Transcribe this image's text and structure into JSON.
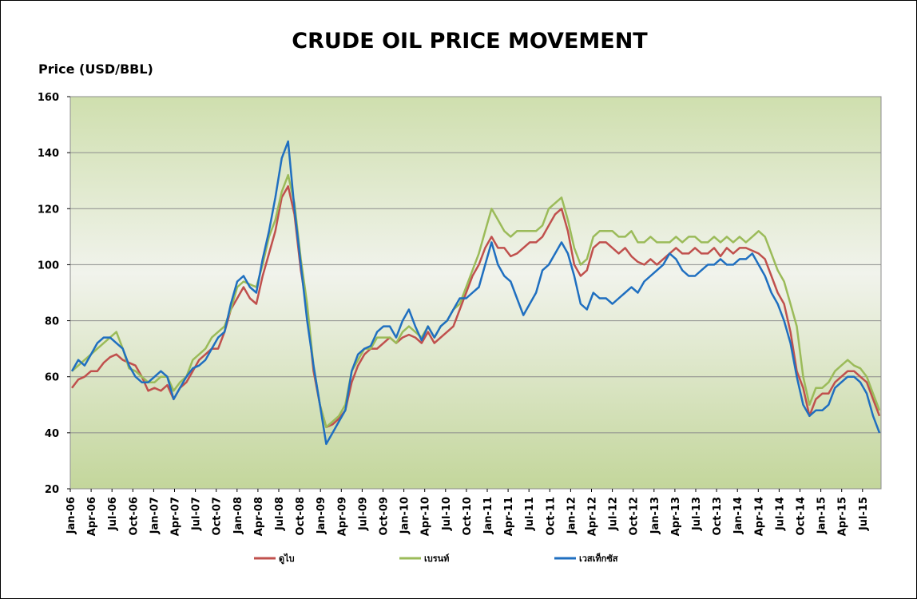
{
  "chart_data": {
    "type": "line",
    "title": "CRUDE OIL PRICE MOVEMENT",
    "ylabel": "Price (USD/BBL)",
    "xlabel": "",
    "ylim": [
      20,
      160
    ],
    "yticks": [
      20,
      40,
      60,
      80,
      100,
      120,
      140,
      160
    ],
    "x_tick_labels": [
      "Jan-06",
      "Apr-06",
      "Jul-06",
      "Oct-06",
      "Jan-07",
      "Apr-07",
      "Jul-07",
      "Oct-07",
      "Jan-08",
      "Apr-08",
      "Jul-08",
      "Oct-08",
      "Jan-09",
      "Apr-09",
      "Jul-09",
      "Oct-09",
      "Jan-10",
      "Apr-10",
      "Jul-10",
      "Oct-10",
      "Jan-11",
      "Apr-11",
      "Jul-11",
      "Oct-11",
      "Jan-12",
      "Apr-12",
      "Jul-12",
      "Oct-12",
      "Jan-13",
      "Apr-13",
      "Jul-13",
      "Oct-13",
      "Jan-14",
      "Apr-14",
      "Jul-14",
      "Oct-14",
      "Jan-15",
      "Apr-15",
      "Jul-15"
    ],
    "grid": true,
    "legend_position": "bottom",
    "series": [
      {
        "name": "ดูไบ",
        "color": "#c0504d",
        "values": [
          56,
          59,
          60,
          62,
          62,
          65,
          67,
          68,
          66,
          65,
          64,
          60,
          55,
          56,
          55,
          57,
          52,
          56,
          58,
          62,
          66,
          68,
          70,
          70,
          76,
          84,
          88,
          92,
          88,
          86,
          96,
          104,
          112,
          124,
          128,
          118,
          98,
          84,
          62,
          50,
          42,
          43,
          45,
          48,
          58,
          64,
          68,
          70,
          70,
          72,
          74,
          72,
          74,
          75,
          74,
          72,
          76,
          72,
          74,
          76,
          78,
          84,
          90,
          96,
          100,
          106,
          110,
          106,
          106,
          103,
          104,
          106,
          108,
          108,
          110,
          114,
          118,
          120,
          112,
          100,
          96,
          98,
          106,
          108,
          108,
          106,
          104,
          106,
          103,
          101,
          100,
          102,
          100,
          102,
          104,
          106,
          104,
          104,
          106,
          104,
          104,
          106,
          103,
          106,
          104,
          106,
          106,
          105,
          104,
          102,
          96,
          90,
          86,
          76,
          62,
          56,
          46,
          52,
          54,
          54,
          58,
          60,
          62,
          62,
          60,
          58,
          52,
          46
        ]
      },
      {
        "name": "เบรนท์",
        "color": "#9bbb59",
        "values": [
          62,
          64,
          66,
          68,
          70,
          72,
          74,
          76,
          70,
          63,
          62,
          60,
          58,
          58,
          60,
          60,
          55,
          58,
          60,
          66,
          68,
          70,
          74,
          76,
          78,
          84,
          92,
          94,
          93,
          92,
          100,
          110,
          116,
          126,
          132,
          122,
          102,
          86,
          64,
          50,
          42,
          44,
          46,
          50,
          62,
          66,
          70,
          70,
          74,
          74,
          74,
          72,
          76,
          78,
          76,
          74,
          78,
          74,
          78,
          80,
          84,
          86,
          92,
          98,
          104,
          112,
          120,
          116,
          112,
          110,
          112,
          112,
          112,
          112,
          114,
          120,
          122,
          124,
          116,
          106,
          100,
          102,
          110,
          112,
          112,
          112,
          110,
          110,
          112,
          108,
          108,
          110,
          108,
          108,
          108,
          110,
          108,
          110,
          110,
          108,
          108,
          110,
          108,
          110,
          108,
          110,
          108,
          110,
          112,
          110,
          104,
          98,
          94,
          86,
          78,
          60,
          50,
          56,
          56,
          58,
          62,
          64,
          66,
          64,
          63,
          60,
          54,
          48
        ]
      },
      {
        "name": "เวสเท็กซัส",
        "color": "#1f6fc0",
        "values": [
          62,
          66,
          64,
          68,
          72,
          74,
          74,
          72,
          70,
          64,
          60,
          58,
          58,
          60,
          62,
          60,
          52,
          56,
          60,
          63,
          64,
          66,
          70,
          74,
          76,
          86,
          94,
          96,
          92,
          90,
          102,
          112,
          124,
          138,
          144,
          120,
          100,
          80,
          64,
          50,
          36,
          40,
          44,
          48,
          62,
          68,
          70,
          71,
          76,
          78,
          78,
          74,
          80,
          84,
          78,
          73,
          78,
          74,
          78,
          80,
          84,
          88,
          88,
          90,
          92,
          100,
          108,
          100,
          96,
          94,
          88,
          82,
          86,
          90,
          98,
          100,
          104,
          108,
          104,
          96,
          86,
          84,
          90,
          88,
          88,
          86,
          88,
          90,
          92,
          90,
          94,
          96,
          98,
          100,
          104,
          102,
          98,
          96,
          96,
          98,
          100,
          100,
          102,
          100,
          100,
          102,
          102,
          104,
          100,
          96,
          90,
          86,
          80,
          72,
          60,
          50,
          46,
          48,
          48,
          50,
          56,
          58,
          60,
          60,
          58,
          54,
          46,
          40
        ]
      }
    ]
  }
}
